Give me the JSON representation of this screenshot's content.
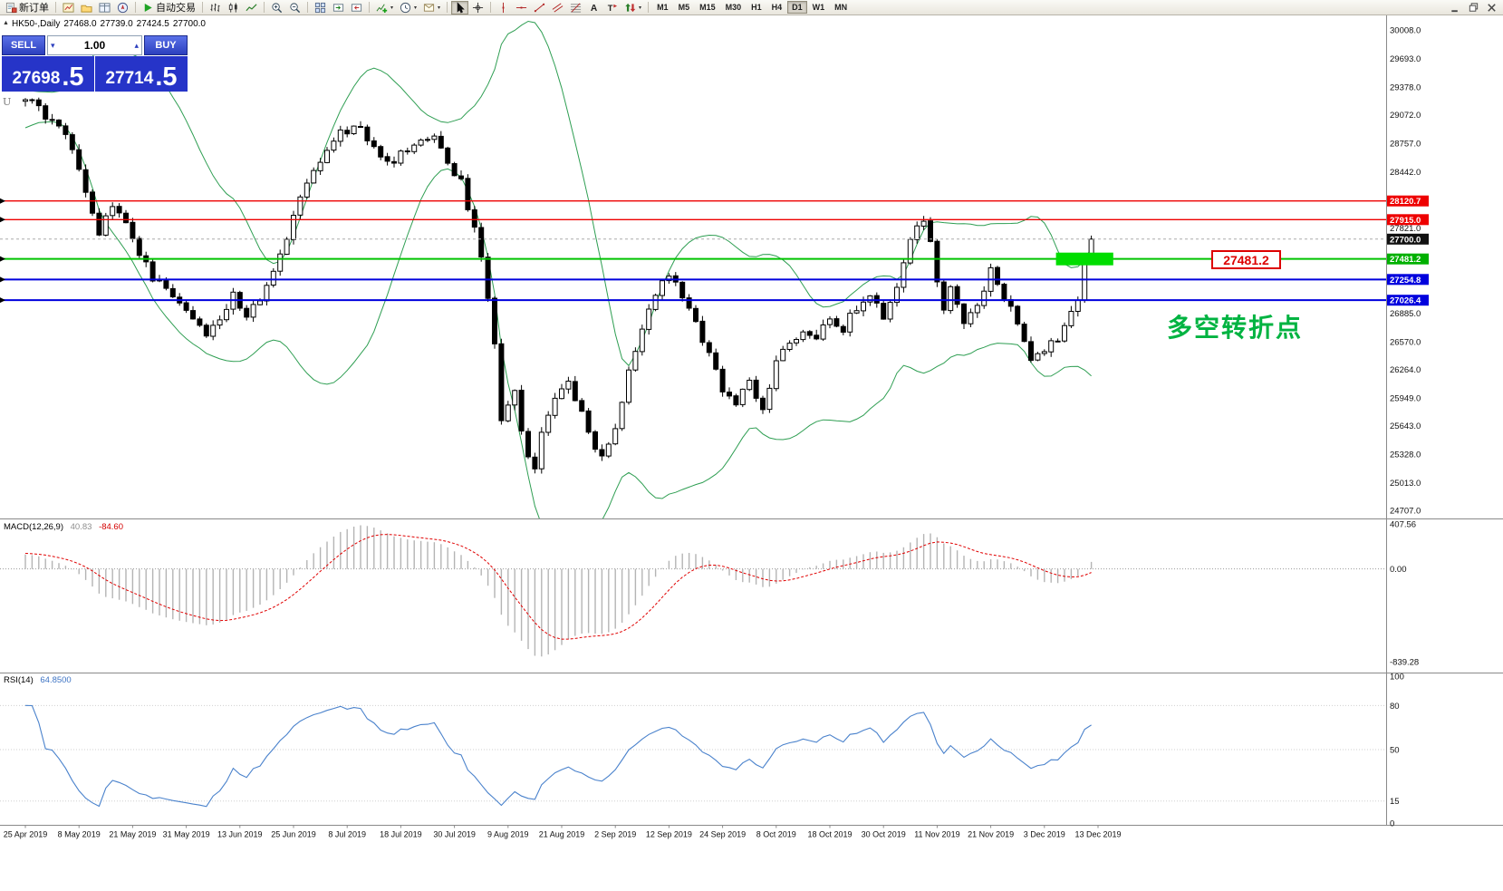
{
  "toolbar": {
    "groups": [
      {
        "items": [
          {
            "name": "new-order-button",
            "icon": "new-order",
            "label": "新订单"
          }
        ]
      },
      {
        "items": [
          {
            "name": "charts-button",
            "icon": "chart-window"
          },
          {
            "name": "profiles-button",
            "icon": "profiles"
          },
          {
            "name": "market-watch-button",
            "icon": "market-watch"
          },
          {
            "name": "navigator-button",
            "icon": "navigator"
          }
        ]
      },
      {
        "items": [
          {
            "name": "auto-trading-button",
            "icon": "play",
            "label": "自动交易"
          }
        ]
      },
      {
        "items": [
          {
            "name": "bar-chart-button",
            "icon": "bars"
          },
          {
            "name": "candlestick-chart-button",
            "icon": "candles"
          },
          {
            "name": "line-chart-button",
            "icon": "line"
          }
        ]
      },
      {
        "items": [
          {
            "name": "zoom-in-button",
            "icon": "zoom-in"
          },
          {
            "name": "zoom-out-button",
            "icon": "zoom-out"
          }
        ]
      },
      {
        "items": [
          {
            "name": "tile-windows-button",
            "icon": "tile"
          },
          {
            "name": "auto-scroll-button",
            "icon": "autoscroll"
          },
          {
            "name": "chart-shift-button",
            "icon": "shift"
          }
        ]
      },
      {
        "items": [
          {
            "name": "indicators-button",
            "icon": "indicator-add",
            "caret": true
          },
          {
            "name": "periods-button",
            "icon": "clock",
            "caret": true
          },
          {
            "name": "templates-button",
            "icon": "template",
            "caret": true
          }
        ]
      },
      {
        "items": [
          {
            "name": "cursor-button",
            "icon": "cursor",
            "active": true
          },
          {
            "name": "crosshair-button",
            "icon": "crosshair"
          }
        ]
      },
      {
        "items": [
          {
            "name": "vertical-line-button",
            "icon": "vline"
          },
          {
            "name": "horizontal-line-button",
            "icon": "hline"
          },
          {
            "name": "trendline-button",
            "icon": "trend"
          },
          {
            "name": "channel-button",
            "icon": "channel"
          },
          {
            "name": "fibonacci-button",
            "icon": "fib"
          },
          {
            "name": "text-button",
            "icon": "text"
          },
          {
            "name": "label-button",
            "icon": "label"
          },
          {
            "name": "arrows-button",
            "icon": "arrows",
            "caret": true
          }
        ]
      },
      {
        "items": [
          {
            "name": "timeframe-m1-button",
            "tf": "M1"
          },
          {
            "name": "timeframe-m5-button",
            "tf": "M5"
          },
          {
            "name": "timeframe-m15-button",
            "tf": "M15"
          },
          {
            "name": "timeframe-m30-button",
            "tf": "M30"
          },
          {
            "name": "timeframe-h1-button",
            "tf": "H1"
          },
          {
            "name": "timeframe-h4-button",
            "tf": "H4"
          },
          {
            "name": "timeframe-d1-button",
            "tf": "D1",
            "active": true
          },
          {
            "name": "timeframe-w1-button",
            "tf": "W1"
          },
          {
            "name": "timeframe-mn-button",
            "tf": "MN"
          }
        ]
      }
    ],
    "window_controls": [
      {
        "name": "minimize-button",
        "icon": "win-min"
      },
      {
        "name": "restore-button",
        "icon": "win-restore"
      },
      {
        "name": "close-button",
        "icon": "win-close"
      }
    ]
  },
  "chart_header": {
    "symbol_period": "HK50-,Daily",
    "open": "27468.0",
    "high": "27739.0",
    "low": "27424.5",
    "close": "27700.0"
  },
  "one_click": {
    "collapse_glyph": "▲",
    "sell_label": "SELL",
    "buy_label": "BUY",
    "volume": "1.00",
    "volume_down_glyph": "▾",
    "volume_up_glyph": "▴",
    "sell_price_int": "27698",
    "sell_price_frac": ".5",
    "buy_price_int": "27714",
    "buy_price_frac": ".5"
  },
  "indicator_labels": {
    "macd_name": "MACD(12,26,9)",
    "macd_value": "40.83",
    "macd_signal": "-84.60",
    "rsi_name": "RSI(14)",
    "rsi_value": "64.8500"
  },
  "annotations": {
    "turning_point_text": "多空转折点",
    "price_callout": "27481.2",
    "object_marker": "U"
  },
  "axes": {
    "price_labels": [
      {
        "t": "30008.0",
        "v": 30008.0
      },
      {
        "t": "29693.0",
        "v": 29693.0
      },
      {
        "t": "29378.0",
        "v": 29378.0
      },
      {
        "t": "29072.0",
        "v": 29072.0
      },
      {
        "t": "28757.0",
        "v": 28757.0
      },
      {
        "t": "28442.0",
        "v": 28442.0
      },
      {
        "t": "27821.0",
        "v": 27821.0
      },
      {
        "t": "26885.0",
        "v": 26885.0
      },
      {
        "t": "26570.0",
        "v": 26570.0
      },
      {
        "t": "26264.0",
        "v": 26264.0
      },
      {
        "t": "25949.0",
        "v": 25949.0
      },
      {
        "t": "25643.0",
        "v": 25643.0
      },
      {
        "t": "25328.0",
        "v": 25328.0
      },
      {
        "t": "25013.0",
        "v": 25013.0
      },
      {
        "t": "24707.0",
        "v": 24707.0
      }
    ],
    "badges": [
      {
        "text": "28120.7",
        "v": 28120.7,
        "bg": "#ee0000"
      },
      {
        "text": "27915.0",
        "v": 27915.0,
        "bg": "#ee0000"
      },
      {
        "text": "27700.0",
        "v": 27700.0,
        "bg": "#111111"
      },
      {
        "text": "27481.2",
        "v": 27481.2,
        "bg": "#00b000"
      },
      {
        "text": "27254.8",
        "v": 27254.8,
        "bg": "#0000dd"
      },
      {
        "text": "27026.4",
        "v": 27026.4,
        "bg": "#0000dd"
      }
    ],
    "macd_labels": [
      {
        "t": "407.56",
        "v": 407.56
      },
      {
        "t": "0.00",
        "v": 0
      },
      {
        "t": "-839.28",
        "v": -839.28
      }
    ],
    "rsi_labels": [
      {
        "t": "100",
        "v": 100
      },
      {
        "t": "80",
        "v": 80
      },
      {
        "t": "50",
        "v": 50
      },
      {
        "t": "15",
        "v": 15
      },
      {
        "t": "0",
        "v": 0
      }
    ],
    "dates": [
      "25 Apr 2019",
      "8 May 2019",
      "21 May 2019",
      "31 May 2019",
      "13 Jun 2019",
      "25 Jun 2019",
      "8 Jul 2019",
      "18 Jul 2019",
      "30 Jul 2019",
      "9 Aug 2019",
      "21 Aug 2019",
      "2 Sep 2019",
      "12 Sep 2019",
      "24 Sep 2019",
      "8 Oct 2019",
      "18 Oct 2019",
      "30 Oct 2019",
      "11 Nov 2019",
      "21 Nov 2019",
      "3 Dec 2019",
      "13 Dec 2019"
    ]
  },
  "colors": {
    "band_green": "#2e9e52",
    "level_red": "#ee0000",
    "level_green": "#00c300",
    "level_blue": "#0000dd",
    "current_price_line": "#aaaaaa",
    "macd_histogram": "#b4b4b4",
    "macd_signal_red": "#e00000",
    "rsi_blue": "#4a82cc",
    "grid_dotted": "#cfcfcf",
    "highlight_green": "#00dd00",
    "annotation_green": "#00b341",
    "callout_red": "#dd0000",
    "candle_up": "#ffffff",
    "candle_down": "#000000",
    "oct_blue": "#2634c8",
    "oct_button_top": "#5a71e8",
    "oct_button_bottom": "#2c3fbe"
  },
  "chart_data": {
    "type": "candlestick",
    "symbol": "HK50-",
    "timeframe": "Daily",
    "num_candles": 160,
    "last_candle": {
      "open": 27468.0,
      "high": 27739.0,
      "low": 27424.5,
      "close": 27700.0
    },
    "current_price": 27700.0,
    "y_axis_range": [
      24707.0,
      30008.0
    ],
    "macd_axis_range": [
      -839.28,
      407.56
    ],
    "rsi_axis_range": [
      0,
      100
    ],
    "indicators": {
      "bollinger": {
        "period": 20,
        "deviation": 2
      },
      "macd": {
        "fast": 12,
        "slow": 26,
        "signal": 9
      },
      "rsi": {
        "period": 14
      }
    },
    "levels": [
      {
        "value": 28120.7,
        "color": "#ee0000",
        "width": 1.4
      },
      {
        "value": 27915.0,
        "color": "#ee0000",
        "width": 1.4
      },
      {
        "value": 27481.2,
        "color": "#00c300",
        "width": 2
      },
      {
        "value": 27254.8,
        "color": "#0000dd",
        "width": 2
      },
      {
        "value": 27026.4,
        "color": "#0000dd",
        "width": 2
      }
    ],
    "highlight": {
      "start_index": 154,
      "end_index": 162,
      "value": 27481.2,
      "color": "#00dd00"
    },
    "price_waypoints": [
      [
        -30,
        28500
      ],
      [
        -24,
        28750
      ],
      [
        -18,
        28950
      ],
      [
        -12,
        29120
      ],
      [
        -6,
        29220
      ],
      [
        0,
        29280
      ],
      [
        2,
        29160
      ],
      [
        4,
        28980
      ],
      [
        6,
        28860
      ],
      [
        8,
        28470
      ],
      [
        10,
        27960
      ],
      [
        11,
        27760
      ],
      [
        13,
        28090
      ],
      [
        15,
        27890
      ],
      [
        17,
        27560
      ],
      [
        19,
        27260
      ],
      [
        21,
        27160
      ],
      [
        23,
        26960
      ],
      [
        25,
        26810
      ],
      [
        27,
        26660
      ],
      [
        29,
        26760
      ],
      [
        31,
        27110
      ],
      [
        33,
        26860
      ],
      [
        35,
        27060
      ],
      [
        37,
        27310
      ],
      [
        39,
        27710
      ],
      [
        41,
        28160
      ],
      [
        43,
        28410
      ],
      [
        45,
        28710
      ],
      [
        47,
        28860
      ],
      [
        49,
        28960
      ],
      [
        51,
        28810
      ],
      [
        53,
        28610
      ],
      [
        55,
        28560
      ],
      [
        57,
        28710
      ],
      [
        59,
        28810
      ],
      [
        61,
        28860
      ],
      [
        63,
        28510
      ],
      [
        65,
        28360
      ],
      [
        66,
        28010
      ],
      [
        67,
        27810
      ],
      [
        68,
        27510
      ],
      [
        69,
        27060
      ],
      [
        70,
        26510
      ],
      [
        71,
        25710
      ],
      [
        72,
        25860
      ],
      [
        73,
        26010
      ],
      [
        74,
        25610
      ],
      [
        75,
        25310
      ],
      [
        76,
        25160
      ],
      [
        77,
        25560
      ],
      [
        79,
        25960
      ],
      [
        81,
        26110
      ],
      [
        83,
        25810
      ],
      [
        85,
        25410
      ],
      [
        86,
        25310
      ],
      [
        88,
        25610
      ],
      [
        90,
        26260
      ],
      [
        92,
        26710
      ],
      [
        94,
        27110
      ],
      [
        96,
        27310
      ],
      [
        98,
        27060
      ],
      [
        100,
        26760
      ],
      [
        102,
        26460
      ],
      [
        104,
        26060
      ],
      [
        106,
        25910
      ],
      [
        108,
        26110
      ],
      [
        110,
        25810
      ],
      [
        112,
        26310
      ],
      [
        114,
        26560
      ],
      [
        116,
        26710
      ],
      [
        118,
        26610
      ],
      [
        120,
        26860
      ],
      [
        122,
        26710
      ],
      [
        124,
        26960
      ],
      [
        126,
        27060
      ],
      [
        128,
        26860
      ],
      [
        130,
        27160
      ],
      [
        131,
        27410
      ],
      [
        132,
        27660
      ],
      [
        133,
        27810
      ],
      [
        134,
        27860
      ],
      [
        135,
        27710
      ],
      [
        136,
        27210
      ],
      [
        137,
        26960
      ],
      [
        138,
        27160
      ],
      [
        140,
        26760
      ],
      [
        142,
        26960
      ],
      [
        144,
        27360
      ],
      [
        146,
        27060
      ],
      [
        148,
        26760
      ],
      [
        150,
        26360
      ],
      [
        152,
        26460
      ],
      [
        154,
        26610
      ],
      [
        156,
        26860
      ],
      [
        157,
        27060
      ],
      [
        158,
        27468
      ],
      [
        159,
        27700
      ]
    ]
  }
}
